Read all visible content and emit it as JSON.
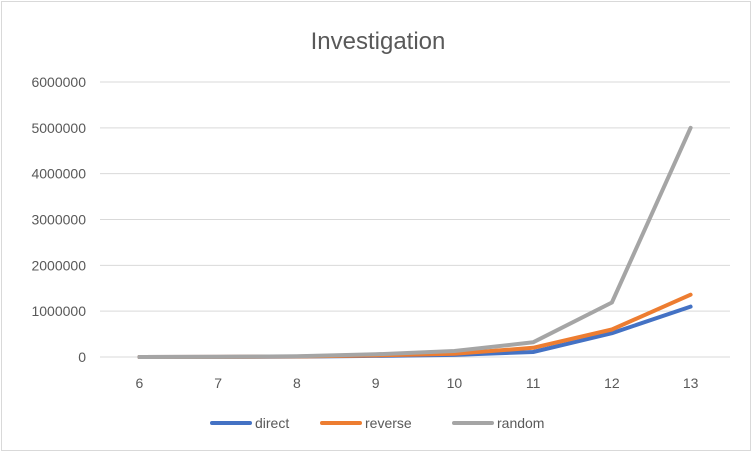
{
  "chart_data": {
    "type": "line",
    "title": "Investigation",
    "xlabel": "",
    "ylabel": "",
    "categories": [
      "6",
      "7",
      "8",
      "9",
      "10",
      "11",
      "12",
      "13"
    ],
    "y_ticks": [
      "0",
      "1000000",
      "2000000",
      "3000000",
      "4000000",
      "5000000",
      "6000000"
    ],
    "ylim": [
      0,
      6000000
    ],
    "grid": true,
    "legend_position": "bottom",
    "series": [
      {
        "name": "direct",
        "color": "#4472C4",
        "values": [
          500,
          2000,
          8000,
          25000,
          45000,
          110000,
          520000,
          1100000
        ]
      },
      {
        "name": "reverse",
        "color": "#ED7D31",
        "values": [
          600,
          2500,
          10000,
          35000,
          70000,
          200000,
          600000,
          1360000
        ]
      },
      {
        "name": "random",
        "color": "#A5A5A5",
        "values": [
          800,
          3000,
          15000,
          60000,
          130000,
          320000,
          1190000,
          5000000
        ]
      }
    ]
  }
}
